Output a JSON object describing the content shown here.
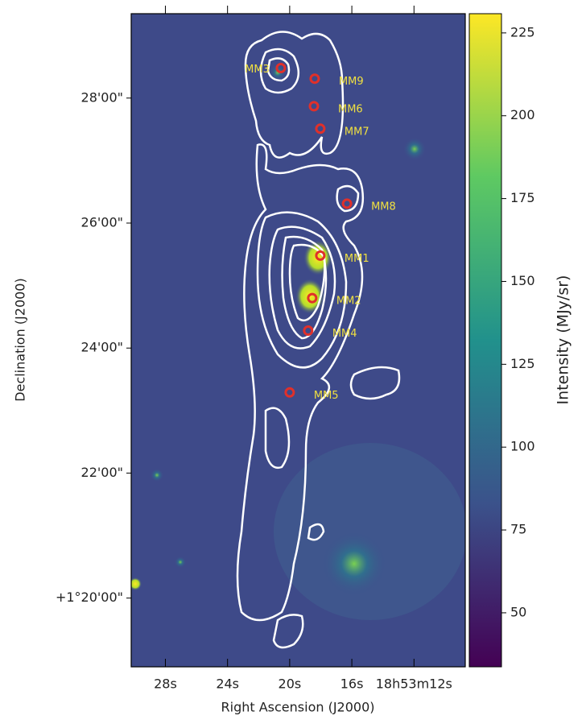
{
  "chart_data": {
    "type": "image",
    "x_label": "Right Ascension (J2000)",
    "y_label": "Declination (J2000)",
    "colorbar_label": "Intensity (MJy/sr)",
    "xlim": [
      30.2,
      8.7
    ],
    "xticks": [
      {
        "value": 28,
        "label": "28s"
      },
      {
        "value": 24,
        "label": "24s"
      },
      {
        "value": 20,
        "label": "20s"
      },
      {
        "value": 16,
        "label": "16s"
      },
      {
        "value": 12,
        "label": "18h53m12s"
      }
    ],
    "ylim": [
      18.9,
      29.35
    ],
    "yticks": [
      {
        "value": 20,
        "label": "+1°20'00\""
      },
      {
        "value": 22,
        "label": "22'00\""
      },
      {
        "value": 24,
        "label": "24'00\""
      },
      {
        "value": 26,
        "label": "26'00\""
      },
      {
        "value": 28,
        "label": "28'00\""
      }
    ],
    "clim": [
      33.7,
      230.8
    ],
    "cticks": [
      50,
      75,
      100,
      125,
      150,
      175,
      200,
      225
    ],
    "marker_color": "#e0302a",
    "label_color": "#f0e040",
    "sources": [
      {
        "name": "MM1",
        "x": 18.03,
        "y": 25.48
      },
      {
        "name": "MM2",
        "x": 18.55,
        "y": 24.8
      },
      {
        "name": "MM3",
        "x": 20.57,
        "y": 28.48
      },
      {
        "name": "MM4",
        "x": 18.81,
        "y": 24.28
      },
      {
        "name": "MM5",
        "x": 20.0,
        "y": 23.29
      },
      {
        "name": "MM6",
        "x": 18.44,
        "y": 27.87
      },
      {
        "name": "MM7",
        "x": 18.03,
        "y": 27.51
      },
      {
        "name": "MM8",
        "x": 16.31,
        "y": 26.31
      },
      {
        "name": "MM9",
        "x": 18.39,
        "y": 28.31
      }
    ]
  }
}
